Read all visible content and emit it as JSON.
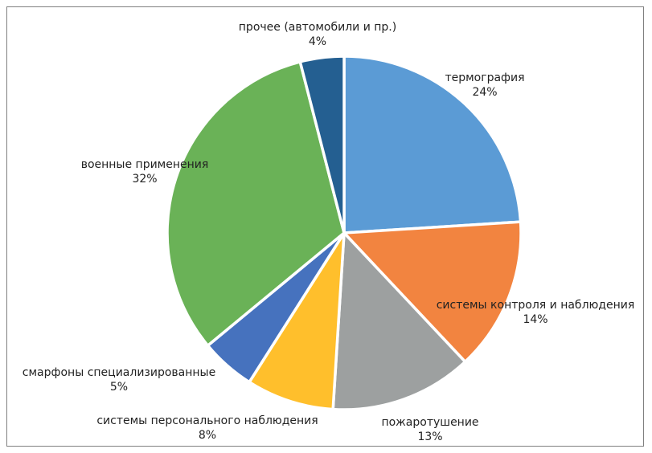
{
  "chart_data": {
    "type": "pie",
    "title": "",
    "unit": "%",
    "slices": [
      {
        "name": "термография",
        "value": 24,
        "label": "24%",
        "color": "#5b9bd5"
      },
      {
        "name": "системы контроля и наблюдения",
        "value": 14,
        "label": "14%",
        "color": "#f28440"
      },
      {
        "name": "пожаротушение",
        "value": 13,
        "label": "13%",
        "color": "#9da0a0"
      },
      {
        "name": "системы персонального наблюдения",
        "value": 8,
        "label": "8%",
        "color": "#ffbf2c"
      },
      {
        "name": "смарфоны специализированные",
        "value": 5,
        "label": "5%",
        "color": "#4672be"
      },
      {
        "name": "военные применения",
        "value": 32,
        "label": "32%",
        "color": "#6ab257"
      },
      {
        "name": "прочее (автомобили и пр.)",
        "value": 4,
        "label": "4%",
        "color": "#245f91"
      }
    ],
    "legend": "none",
    "start_angle": "12 o'clock, clockwise"
  }
}
